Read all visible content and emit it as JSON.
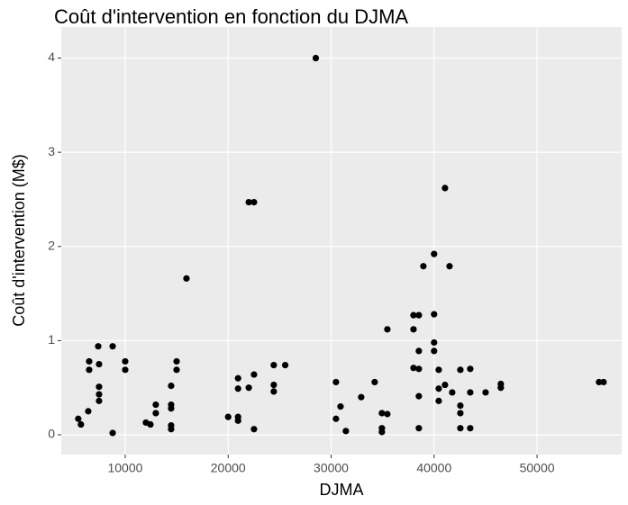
{
  "chart_data": {
    "type": "scatter",
    "title": "Coût d'intervention en fonction du DJMA",
    "x_label": "DJMA",
    "y_label": "Coût d'intervention (M$)",
    "color": "#000000",
    "grid": true,
    "xlim": [
      3790,
      58220
    ],
    "ylim": [
      -0.21,
      4.33
    ],
    "xticks": [
      10000,
      20000,
      30000,
      40000,
      50000
    ],
    "yticks": [
      0,
      1,
      2,
      3,
      4
    ],
    "x": [
      5440,
      5700,
      6410,
      6500,
      6500,
      7380,
      7460,
      7460,
      7460,
      7460,
      8780,
      8780,
      10000,
      10000,
      12010,
      12450,
      12970,
      12970,
      14460,
      14460,
      14460,
      14460,
      14460,
      14990,
      14990,
      15950,
      20000,
      20960,
      20960,
      20960,
      20960,
      22000,
      22510,
      22000,
      22510,
      22510,
      24430,
      24430,
      24430,
      25540,
      28510,
      30470,
      30470,
      30910,
      31430,
      32920,
      34230,
      34930,
      34930,
      34930,
      35460,
      35460,
      38000,
      38520,
      38000,
      38000,
      38520,
      38520,
      38520,
      38520,
      38960,
      40000,
      40000,
      40000,
      40000,
      40450,
      40450,
      40450,
      41060,
      41060,
      41500,
      41760,
      42550,
      42550,
      42550,
      42550,
      43510,
      43510,
      43510,
      45000,
      46480,
      46480,
      56020,
      56460
    ],
    "y": [
      0.17,
      0.11,
      0.25,
      0.78,
      0.69,
      0.94,
      0.75,
      0.51,
      0.43,
      0.36,
      0.94,
      0.02,
      0.78,
      0.69,
      0.13,
      0.11,
      0.32,
      0.23,
      0.52,
      0.32,
      0.28,
      0.1,
      0.06,
      0.78,
      0.69,
      1.66,
      0.19,
      0.6,
      0.49,
      0.19,
      0.15,
      2.47,
      2.47,
      0.5,
      0.64,
      0.06,
      0.74,
      0.53,
      0.46,
      0.74,
      4.0,
      0.56,
      0.17,
      0.3,
      0.04,
      0.4,
      0.56,
      0.23,
      0.07,
      0.03,
      0.22,
      1.12,
      1.27,
      1.27,
      1.12,
      0.71,
      0.7,
      0.89,
      0.41,
      0.07,
      1.79,
      1.92,
      1.28,
      0.98,
      0.89,
      0.69,
      0.49,
      0.36,
      2.62,
      0.53,
      1.79,
      0.45,
      0.69,
      0.31,
      0.23,
      0.07,
      0.7,
      0.45,
      0.07,
      0.45,
      0.54,
      0.5,
      0.56,
      0.56
    ]
  }
}
